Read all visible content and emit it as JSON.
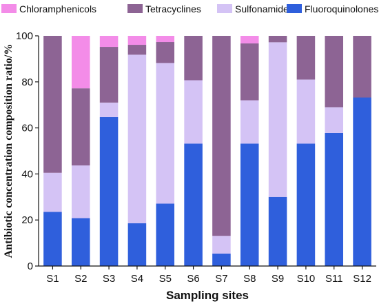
{
  "chart_data": {
    "type": "bar",
    "stacked": true,
    "xlabel": "Sampling sites",
    "ylabel": "Antibiotic concentration composition ratio/%",
    "ylim": [
      0,
      100
    ],
    "yticks": [
      0,
      20,
      40,
      60,
      80,
      100
    ],
    "categories": [
      "S1",
      "S2",
      "S3",
      "S4",
      "S5",
      "S6",
      "S7",
      "S8",
      "S9",
      "S10",
      "S11",
      "S12"
    ],
    "legend_position": "top",
    "series": [
      {
        "name": "Fluoroquinolones",
        "color": "#2f5fdc",
        "values": [
          23.5,
          20.8,
          64.7,
          18.6,
          27.1,
          53.2,
          5.4,
          53.2,
          30.0,
          53.2,
          57.8,
          73.2
        ]
      },
      {
        "name": "Sulfonamides",
        "color": "#d4c3f5",
        "values": [
          17.0,
          22.9,
          6.3,
          73.2,
          61.1,
          27.5,
          7.7,
          18.8,
          67.2,
          27.8,
          11.2,
          0.0
        ]
      },
      {
        "name": "Tetracyclines",
        "color": "#8d6494",
        "values": [
          59.5,
          33.5,
          24.2,
          4.3,
          9.1,
          19.3,
          86.9,
          24.7,
          2.8,
          19.0,
          31.0,
          26.8
        ]
      },
      {
        "name": "Chloramphenicols",
        "color": "#f38ce8",
        "values": [
          0.0,
          22.8,
          4.8,
          3.9,
          2.7,
          0.0,
          0.0,
          3.3,
          0.0,
          0.0,
          0.0,
          0.0
        ]
      }
    ],
    "legend_order": [
      "Chloramphenicols",
      "Tetracyclines",
      "Sulfonamides",
      "Fluoroquinolones"
    ]
  }
}
